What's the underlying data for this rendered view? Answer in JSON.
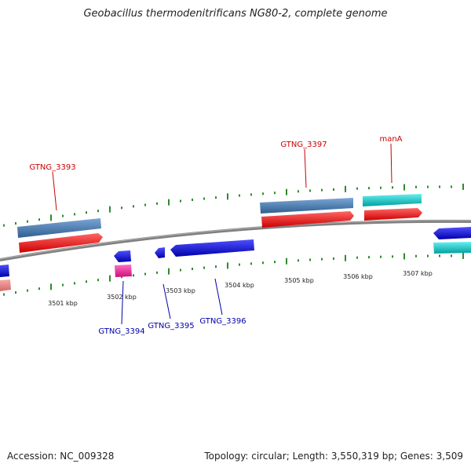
{
  "title": "Geobacillus thermodenitrificans NG80-2, complete genome",
  "footer": {
    "accession_label": "Accession:",
    "accession": "NC_009328",
    "topology_label": "Topology:",
    "topology": "circular",
    "length_label": "Length:",
    "length": "3,550,319 bp",
    "genes_label": "Genes:",
    "genes": "3,509"
  },
  "colors": {
    "backbone": "#808080",
    "tick": "#2e8b2e",
    "label_forward": "#cc0000",
    "label_reverse": "#0000aa",
    "gene_forward": "#ff0000",
    "gene_reverse": "#0000ee",
    "feature_steelblue": "#4f81b4",
    "feature_cyan": "#00cccc",
    "feature_magenta": "#ff1493",
    "feature_salmon": "#f08080"
  },
  "scale_labels": [
    "3501 kbp",
    "3502 kbp",
    "3503 kbp",
    "3504 kbp",
    "3505 kbp",
    "3506 kbp",
    "3507 kbp"
  ],
  "gene_labels": {
    "forward": [
      "GTNG_3393",
      "GTNG_3397",
      "manA"
    ],
    "reverse": [
      "GTNG_3394",
      "GTNG_3395",
      "GTNG_3396"
    ]
  }
}
